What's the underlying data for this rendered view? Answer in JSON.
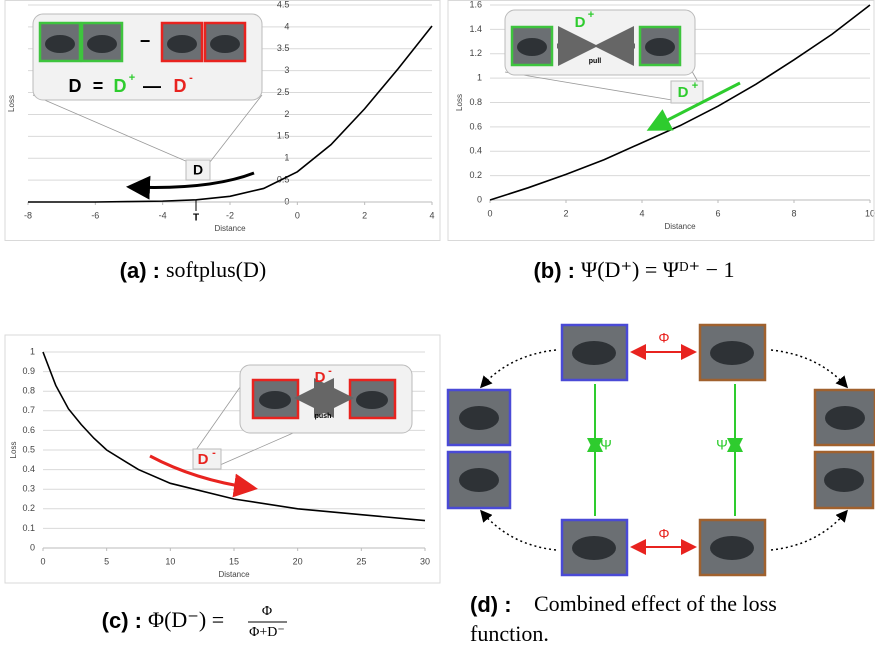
{
  "chart_data": [
    {
      "type": "line",
      "x": [
        -8,
        -7,
        -6,
        -5,
        -4,
        -3,
        -2,
        -1,
        0,
        1,
        2,
        3,
        4
      ],
      "values": [
        0,
        0,
        0,
        0.01,
        0.02,
        0.05,
        0.13,
        0.31,
        0.69,
        1.31,
        2.13,
        3.05,
        4.02
      ],
      "xlim": [
        -8,
        4
      ],
      "ylim": [
        0,
        4.5
      ],
      "xticks": [
        -8,
        -6,
        -4,
        -2,
        0,
        2,
        4
      ],
      "yticks": [
        0,
        0.5,
        1,
        1.5,
        2,
        2.5,
        3,
        3.5,
        4,
        4.5
      ],
      "xlabel": "Distance",
      "ylabel": "Loss",
      "grid": true,
      "color": "#000000",
      "annotations": {
        "minus": "−",
        "formula": [
          "D",
          "=",
          "D",
          "+",
          "—",
          "D",
          "-"
        ],
        "callout": "D",
        "threshold": "T"
      }
    },
    {
      "type": "line",
      "x": [
        0,
        1,
        2,
        3,
        4,
        5,
        6,
        7,
        8,
        9,
        10
      ],
      "values": [
        0,
        0.1,
        0.21,
        0.33,
        0.47,
        0.61,
        0.77,
        0.95,
        1.15,
        1.36,
        1.6
      ],
      "xlim": [
        0,
        10
      ],
      "ylim": [
        0,
        1.6
      ],
      "xticks": [
        0,
        2,
        4,
        6,
        8,
        10
      ],
      "yticks": [
        0,
        0.2,
        0.4,
        0.6,
        0.8,
        1,
        1.2,
        1.4,
        1.6
      ],
      "xlabel": "Distance",
      "ylabel": "Loss",
      "grid": true,
      "color": "#000000",
      "annotations": {
        "inset_label": [
          "D",
          "+"
        ],
        "action": "pull",
        "callout": [
          "D",
          "+"
        ]
      }
    },
    {
      "type": "line",
      "x": [
        0,
        1,
        2,
        3,
        4,
        5,
        7.5,
        10,
        15,
        20,
        25,
        30
      ],
      "values": [
        1,
        0.83,
        0.71,
        0.63,
        0.56,
        0.5,
        0.4,
        0.33,
        0.25,
        0.2,
        0.17,
        0.14
      ],
      "xlim": [
        0,
        30
      ],
      "ylim": [
        0,
        1
      ],
      "xticks": [
        0,
        5,
        10,
        15,
        20,
        25,
        30
      ],
      "yticks": [
        0,
        0.1,
        0.2,
        0.3,
        0.4,
        0.5,
        0.6,
        0.7,
        0.8,
        0.9,
        1
      ],
      "xlabel": "Distance",
      "ylabel": "Loss",
      "grid": true,
      "color": "#000000",
      "annotations": {
        "inset_label": [
          "D",
          "-"
        ],
        "action": "push",
        "callout": [
          "D",
          "-"
        ]
      }
    }
  ],
  "diagram": {
    "labels": [
      "Φ",
      "Φ",
      "Ψ",
      "Ψ"
    ]
  },
  "captions": [
    {
      "label": "(a) :",
      "math": "softplus(D)"
    },
    {
      "label": "(b) :",
      "math": "Ψ(D⁺) = Ψᴰ⁺ − 1"
    },
    {
      "label": "(c) :",
      "math": "Φ(D⁻) =",
      "numerator": "Φ",
      "denominator": "Φ+D⁻"
    },
    {
      "label": "(d) :",
      "text": [
        "Combined effect of the loss",
        "function."
      ]
    }
  ]
}
